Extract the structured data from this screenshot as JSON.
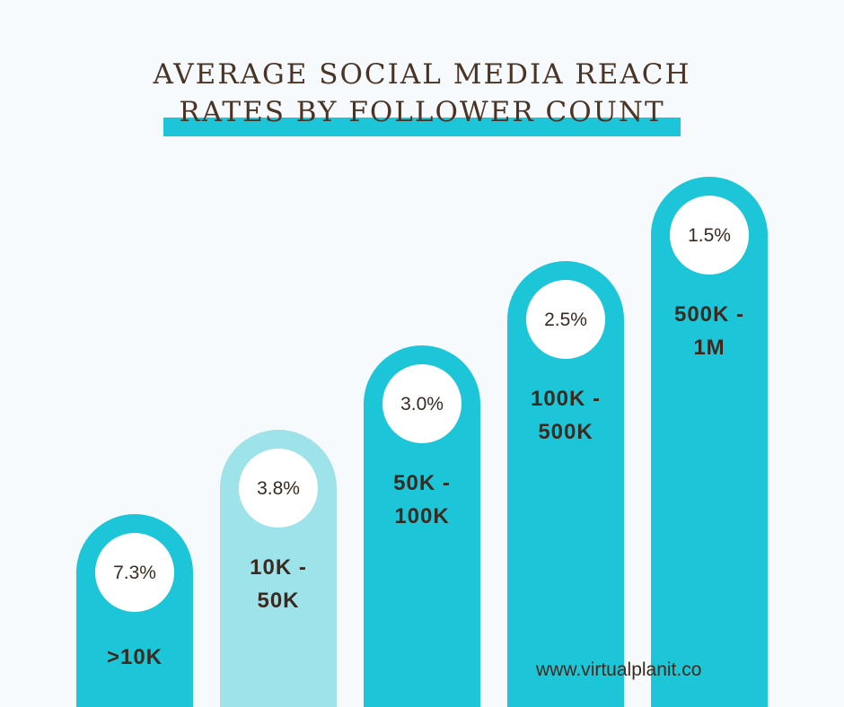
{
  "title_lines": [
    "AVERAGE SOCIAL MEDIA REACH",
    "RATES BY FOLLOWER COUNT"
  ],
  "footer": "www.virtualplanit.co",
  "colors": {
    "bar": "#1cc6d8",
    "bar_light": "#9ee2ea",
    "text": "#3a2a20",
    "title": "#4a3426"
  },
  "chart_data": {
    "type": "bar",
    "title": "AVERAGE SOCIAL MEDIA REACH RATES BY FOLLOWER COUNT",
    "categories": [
      ">10K",
      "10K - 50K",
      "50K - 100K",
      "100K - 500K",
      "500K - 1M"
    ],
    "category_lines": [
      [
        ">10K"
      ],
      [
        "10K -",
        "50K"
      ],
      [
        "50K -",
        " 100K"
      ],
      [
        "100K -",
        "500K"
      ],
      [
        "500K -",
        " 1M"
      ]
    ],
    "values": [
      7.3,
      3.8,
      3.0,
      2.5,
      1.5
    ],
    "value_labels": [
      "7.3%",
      "3.8%",
      "3.0%",
      "2.5%",
      "1.5%"
    ],
    "highlight_index": 1,
    "grid": false,
    "legend": "none"
  }
}
